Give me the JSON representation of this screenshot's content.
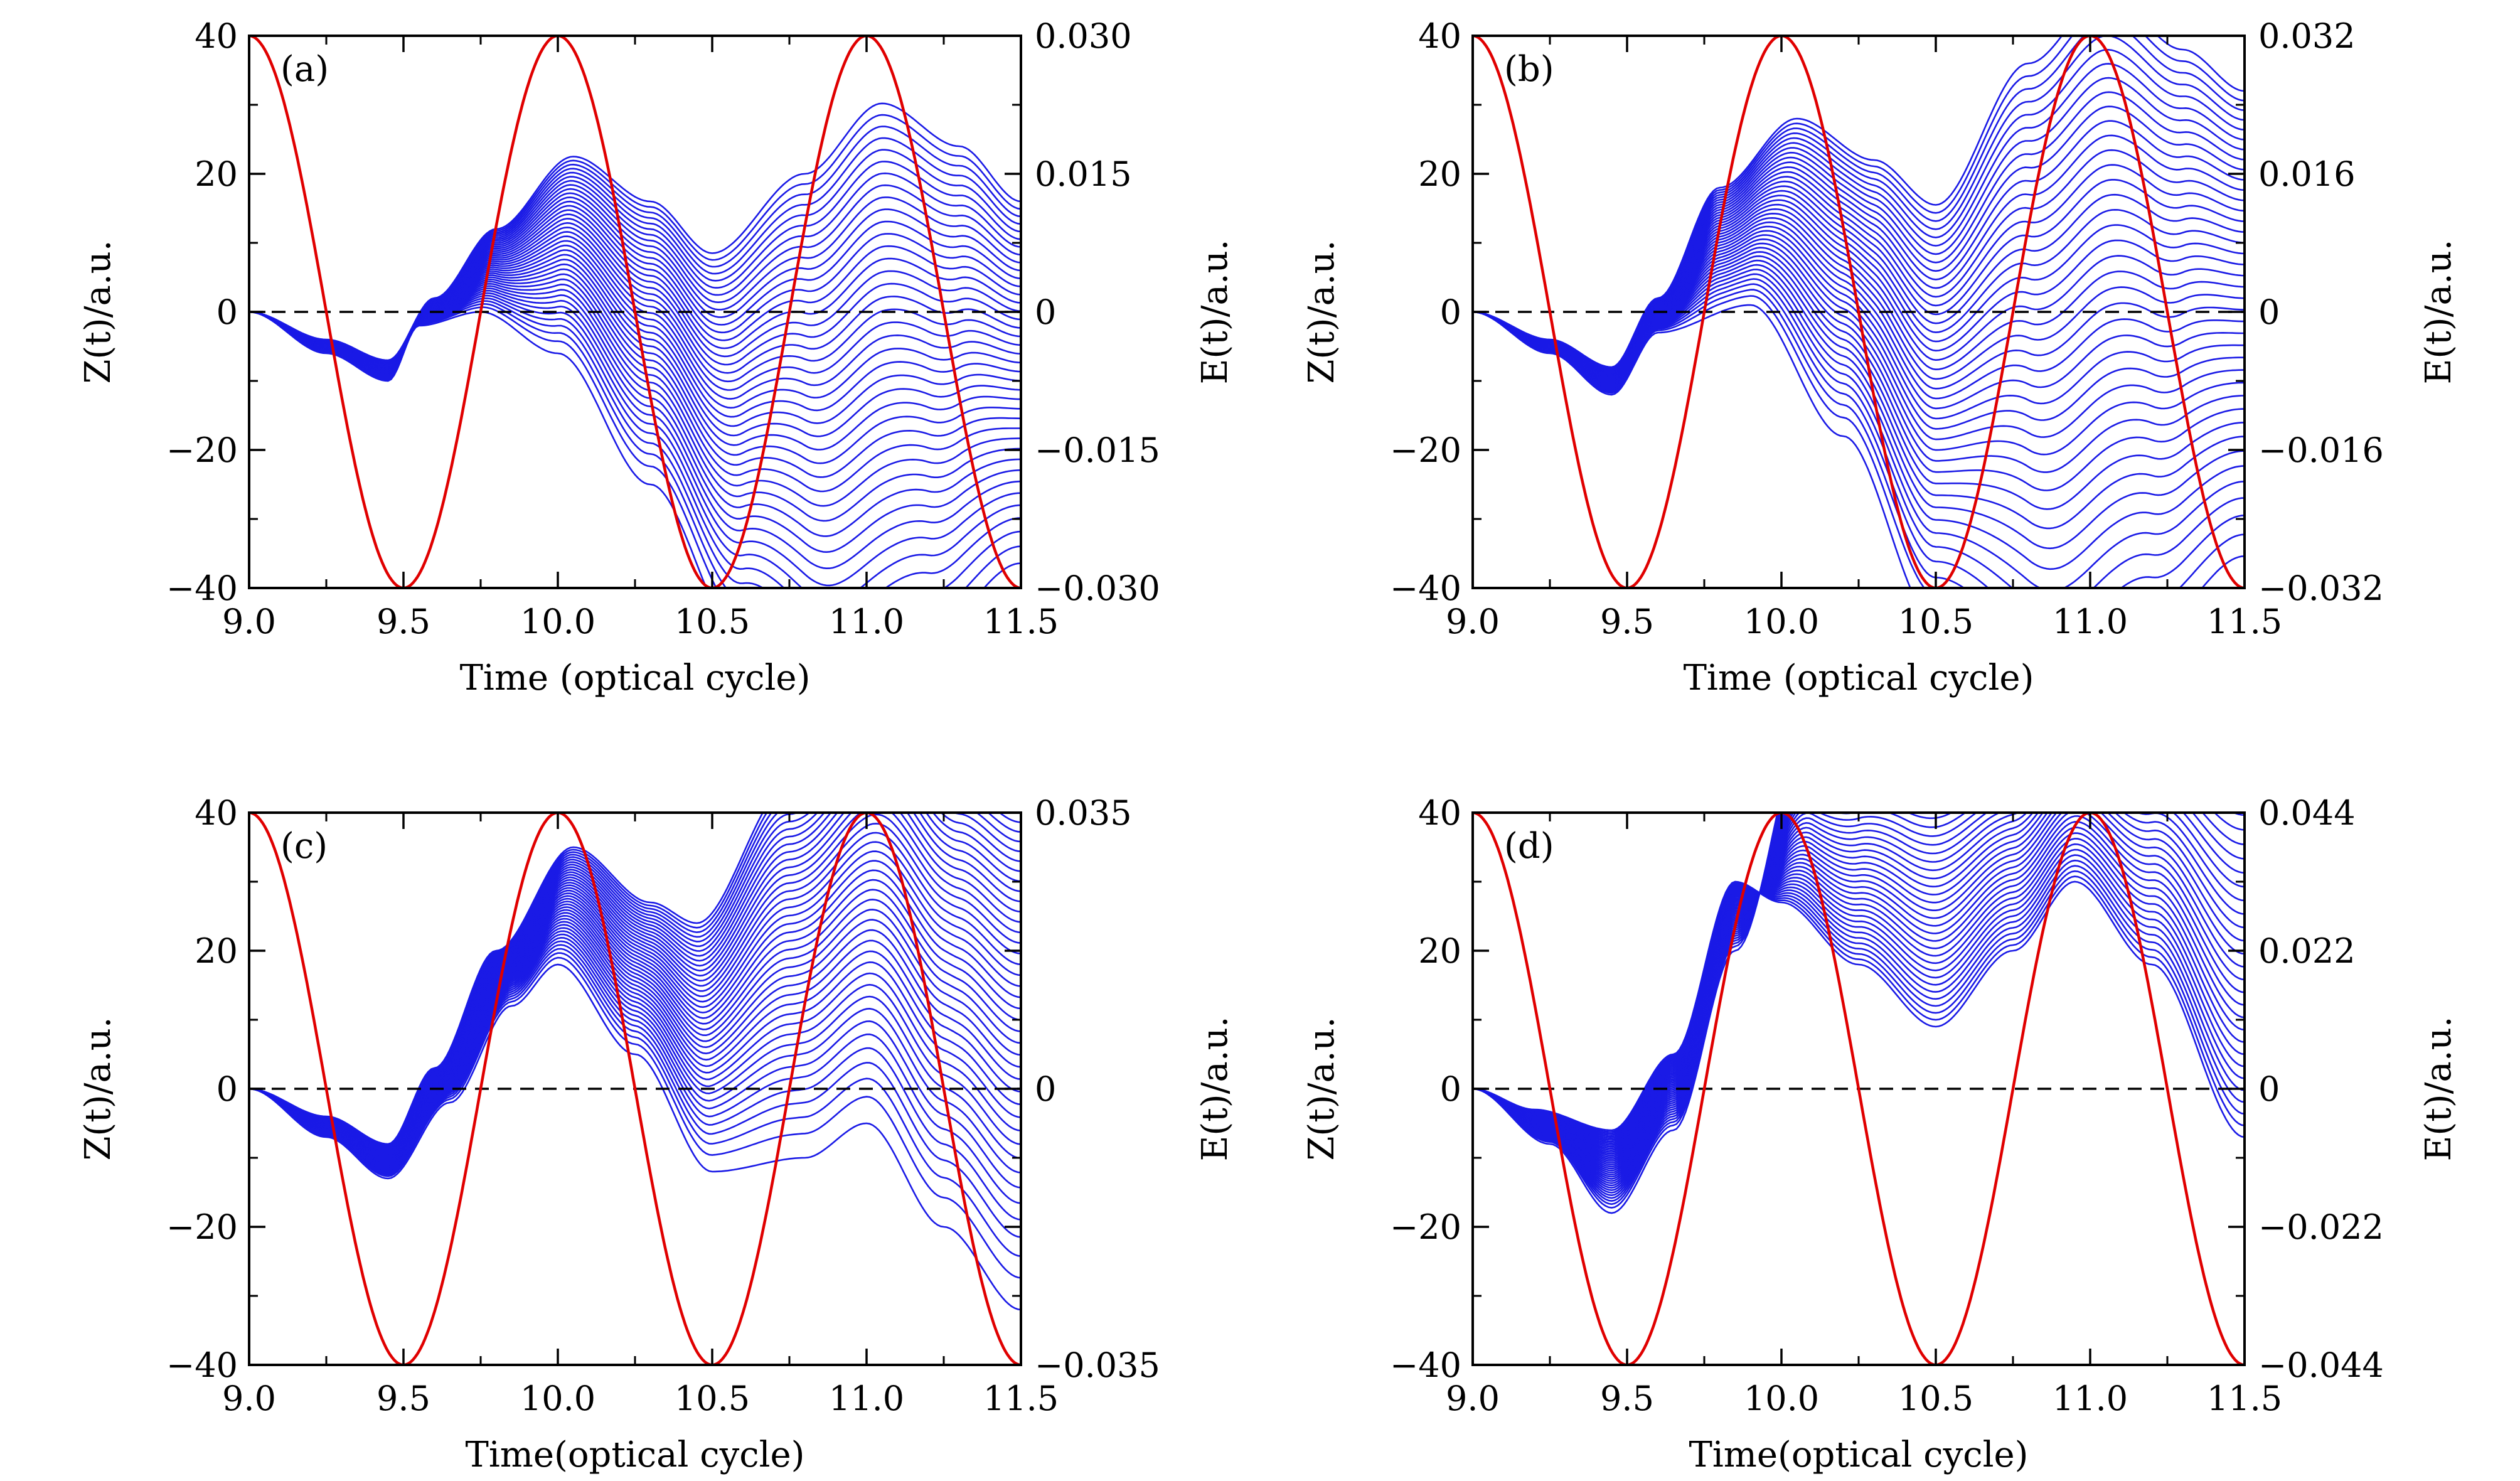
{
  "figure": {
    "description_panels": [
      "a",
      "b",
      "c",
      "d"
    ]
  },
  "chart_data": [
    {
      "type": "line",
      "panel_label": "(a)",
      "xlabel": "Time (optical cycle)",
      "ylabel": "Z(t)/a.u.",
      "y2label": "E(t)/a.u.",
      "xlim": [
        9.0,
        11.5
      ],
      "ylim": [
        -40,
        40
      ],
      "y2lim": [
        -0.03,
        0.03
      ],
      "x_ticks": [
        "9.0",
        "9.5",
        "10.0",
        "10.5",
        "11.0",
        "11.5"
      ],
      "y_ticks": [
        "40",
        "20",
        "0",
        "−20",
        "−40"
      ],
      "y2_ticks": [
        "0.030",
        "0.015",
        "0",
        "−0.015",
        "−0.030"
      ],
      "field_series": {
        "color": "#e00000",
        "amplitude": 0.03,
        "form": "cos(2πt)"
      },
      "trajectory_series": {
        "color": "#1a1ae6",
        "count": 40,
        "top_envelope_end": 16,
        "bottom_envelope_end": -40
      },
      "zero_line": {
        "style": "dashed",
        "color": "#000000"
      }
    },
    {
      "type": "line",
      "panel_label": "(b)",
      "xlabel": "Time (optical cycle)",
      "ylabel": "Z(t)/a.u.",
      "y2label": "E(t)/a.u.",
      "xlim": [
        9.0,
        11.5
      ],
      "ylim": [
        -40,
        40
      ],
      "y2lim": [
        -0.032,
        0.032
      ],
      "x_ticks": [
        "9.0",
        "9.5",
        "10.0",
        "10.5",
        "11.0",
        "11.5"
      ],
      "y_ticks": [
        "40",
        "20",
        "0",
        "−20",
        "−40"
      ],
      "y2_ticks": [
        "0.032",
        "0.016",
        "0",
        "−0.016",
        "−0.032"
      ],
      "field_series": {
        "color": "#e00000",
        "amplitude": 0.032,
        "form": "cos(2πt)"
      },
      "trajectory_series": {
        "color": "#1a1ae6",
        "count": 40,
        "top_envelope_end": 32,
        "bottom_envelope_end": -40
      },
      "zero_line": {
        "style": "dashed",
        "color": "#000000"
      }
    },
    {
      "type": "line",
      "panel_label": "(c)",
      "xlabel": "Time(optical cycle)",
      "ylabel": "Z(t)/a.u.",
      "y2label": "E(t)/a.u.",
      "xlim": [
        9.0,
        11.5
      ],
      "ylim": [
        -40,
        40
      ],
      "y2lim": [
        -0.035,
        0.035
      ],
      "x_ticks": [
        "9.0",
        "9.5",
        "10.0",
        "10.5",
        "11.0",
        "11.5"
      ],
      "y_ticks": [
        "40",
        "20",
        "0",
        "−20",
        "−40"
      ],
      "y2_ticks": [
        "0.035",
        "",
        "0",
        "",
        "−0.035"
      ],
      "field_series": {
        "color": "#e00000",
        "amplitude": 0.035,
        "form": "cos(2πt)"
      },
      "trajectory_series": {
        "color": "#1a1ae6",
        "count": 40,
        "top_envelope_end": 40,
        "bottom_envelope_end": -32
      },
      "zero_line": {
        "style": "dashed",
        "color": "#000000"
      }
    },
    {
      "type": "line",
      "panel_label": "(d)",
      "xlabel": "Time(optical cycle)",
      "ylabel": "Z(t)/a.u.",
      "y2label": "E(t)/a.u.",
      "xlim": [
        9.0,
        11.5
      ],
      "ylim": [
        -40,
        40
      ],
      "y2lim": [
        -0.044,
        0.044
      ],
      "x_ticks": [
        "9.0",
        "9.5",
        "10.0",
        "10.5",
        "11.0",
        "11.5"
      ],
      "y_ticks": [
        "40",
        "20",
        "0",
        "−20",
        "−40"
      ],
      "y2_ticks": [
        "0.044",
        "0.022",
        "0",
        "−0.022",
        "−0.044"
      ],
      "field_series": {
        "color": "#e00000",
        "amplitude": 0.044,
        "form": "cos(2πt)"
      },
      "trajectory_series": {
        "color": "#1a1ae6",
        "count": 40,
        "top_envelope_end": 40,
        "bottom_envelope_end": -7
      },
      "zero_line": {
        "style": "dashed",
        "color": "#000000"
      }
    }
  ]
}
